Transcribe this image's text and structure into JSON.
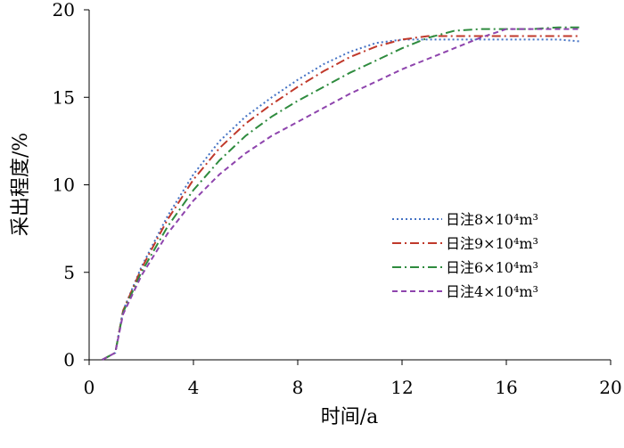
{
  "chart_data": {
    "type": "line",
    "xlabel": "时间/a",
    "ylabel": "采出程度/%",
    "xlim": [
      0,
      20
    ],
    "ylim": [
      0,
      20
    ],
    "xticks": [
      0,
      4,
      8,
      12,
      16,
      20
    ],
    "yticks": [
      0,
      5,
      10,
      15,
      20
    ],
    "grid": false,
    "legend_position": "right",
    "series": [
      {
        "name": "日注8×10⁴m³",
        "color": "#4472C4",
        "dash": "dotted",
        "x": [
          0.5,
          1.0,
          1.3,
          2.0,
          3.0,
          4.0,
          5.0,
          6.0,
          7.0,
          8.0,
          9.0,
          10.0,
          11.0,
          12.0,
          13.0,
          14.0,
          15.0,
          16.0,
          17.0,
          18.0,
          18.8
        ],
        "y": [
          0,
          0.4,
          2.8,
          5.3,
          8.2,
          10.6,
          12.5,
          13.9,
          15.0,
          16.0,
          16.9,
          17.6,
          18.1,
          18.3,
          18.3,
          18.3,
          18.3,
          18.3,
          18.3,
          18.3,
          18.2
        ]
      },
      {
        "name": "日注9×10⁴m³",
        "color": "#C0392B",
        "dash": "dashdot",
        "x": [
          0.5,
          1.0,
          1.3,
          2.0,
          3.0,
          4.0,
          5.0,
          6.0,
          7.0,
          8.0,
          9.0,
          10.0,
          11.0,
          12.0,
          13.0,
          14.0,
          15.0,
          16.0,
          17.0,
          18.0,
          18.8
        ],
        "y": [
          0,
          0.4,
          2.8,
          5.2,
          8.0,
          10.3,
          12.1,
          13.5,
          14.6,
          15.6,
          16.5,
          17.3,
          17.9,
          18.3,
          18.5,
          18.5,
          18.5,
          18.5,
          18.5,
          18.5,
          18.5
        ]
      },
      {
        "name": "日注6×10⁴m³",
        "color": "#2E8B3E",
        "dash": "dashdot",
        "x": [
          0.5,
          1.0,
          1.3,
          2.0,
          3.0,
          4.0,
          5.0,
          6.0,
          7.0,
          8.0,
          9.0,
          10.0,
          11.0,
          12.0,
          13.0,
          14.0,
          15.0,
          16.0,
          17.0,
          18.0,
          18.8
        ],
        "y": [
          0,
          0.4,
          2.7,
          5.0,
          7.6,
          9.7,
          11.4,
          12.8,
          13.9,
          14.8,
          15.6,
          16.4,
          17.1,
          17.8,
          18.4,
          18.8,
          18.9,
          18.9,
          18.9,
          19.0,
          19.0
        ]
      },
      {
        "name": "日注4×10⁴m³",
        "color": "#8E44AD",
        "dash": "dashed",
        "x": [
          0.5,
          1.0,
          1.3,
          2.0,
          3.0,
          4.0,
          5.0,
          6.0,
          7.0,
          8.0,
          9.0,
          10.0,
          11.0,
          12.0,
          13.0,
          14.0,
          15.0,
          16.0,
          17.0,
          18.0,
          18.8
        ],
        "y": [
          0,
          0.4,
          2.6,
          4.8,
          7.2,
          9.1,
          10.6,
          11.8,
          12.8,
          13.6,
          14.4,
          15.2,
          15.9,
          16.6,
          17.2,
          17.8,
          18.4,
          18.9,
          18.9,
          18.9,
          18.9
        ]
      }
    ]
  }
}
